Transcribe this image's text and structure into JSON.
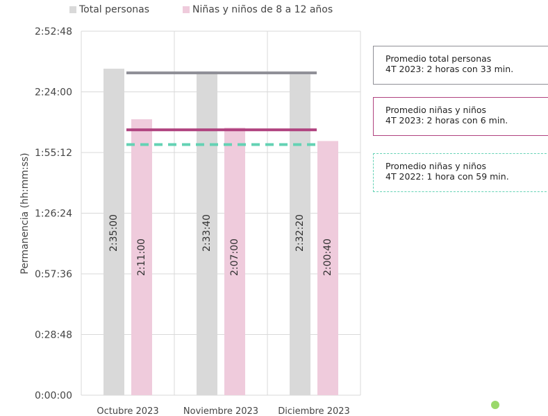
{
  "legend": {
    "total_label": "Total personas",
    "kids_label": "Niñas y niños de 8 a 12 años"
  },
  "notes": {
    "avg_total": "Promedio total personas\n4T 2023: 2 horas con 33 min.",
    "avg_kids_2023": "Promedio niñas y niños\n4T 2023: 2 horas con 6 min.",
    "avg_kids_2022": "Promedio niñas y niños\n4T 2022: 1 hora con 59 min."
  },
  "chart_data": {
    "type": "bar",
    "categories": [
      "Octubre 2023",
      "Noviembre 2023",
      "Diciembre 2023"
    ],
    "ylabel": "Permanencia (hh:mm:ss)",
    "ylim": [
      0,
      10368
    ],
    "y_ticks": [
      0,
      1728,
      3456,
      5184,
      6912,
      8640,
      10368
    ],
    "y_tick_labels": [
      "0:00:00",
      "0:28:48",
      "0:57:36",
      "1:26:24",
      "1:55:12",
      "2:24:00",
      "2:52:48"
    ],
    "grid": true,
    "series": [
      {
        "name": "Total personas",
        "color": "#d9d9d9",
        "values": [
          9300,
          9220,
          9140
        ],
        "labels": [
          "2:35:00",
          "2:33:40",
          "2:32:20"
        ]
      },
      {
        "name": "Niñas y niños de 8 a 12 años",
        "color": "#efcbdc",
        "values": [
          7860,
          7620,
          7240
        ],
        "labels": [
          "2:11:00",
          "2:07:00",
          "2:00:40"
        ]
      }
    ],
    "reference_lines": [
      {
        "value": 9180,
        "color": "#8e8e96",
        "style": "solid"
      },
      {
        "value": 7560,
        "color": "#b0427f",
        "style": "solid"
      },
      {
        "value": 7140,
        "color": "#64d2b4",
        "style": "dashed"
      }
    ]
  }
}
